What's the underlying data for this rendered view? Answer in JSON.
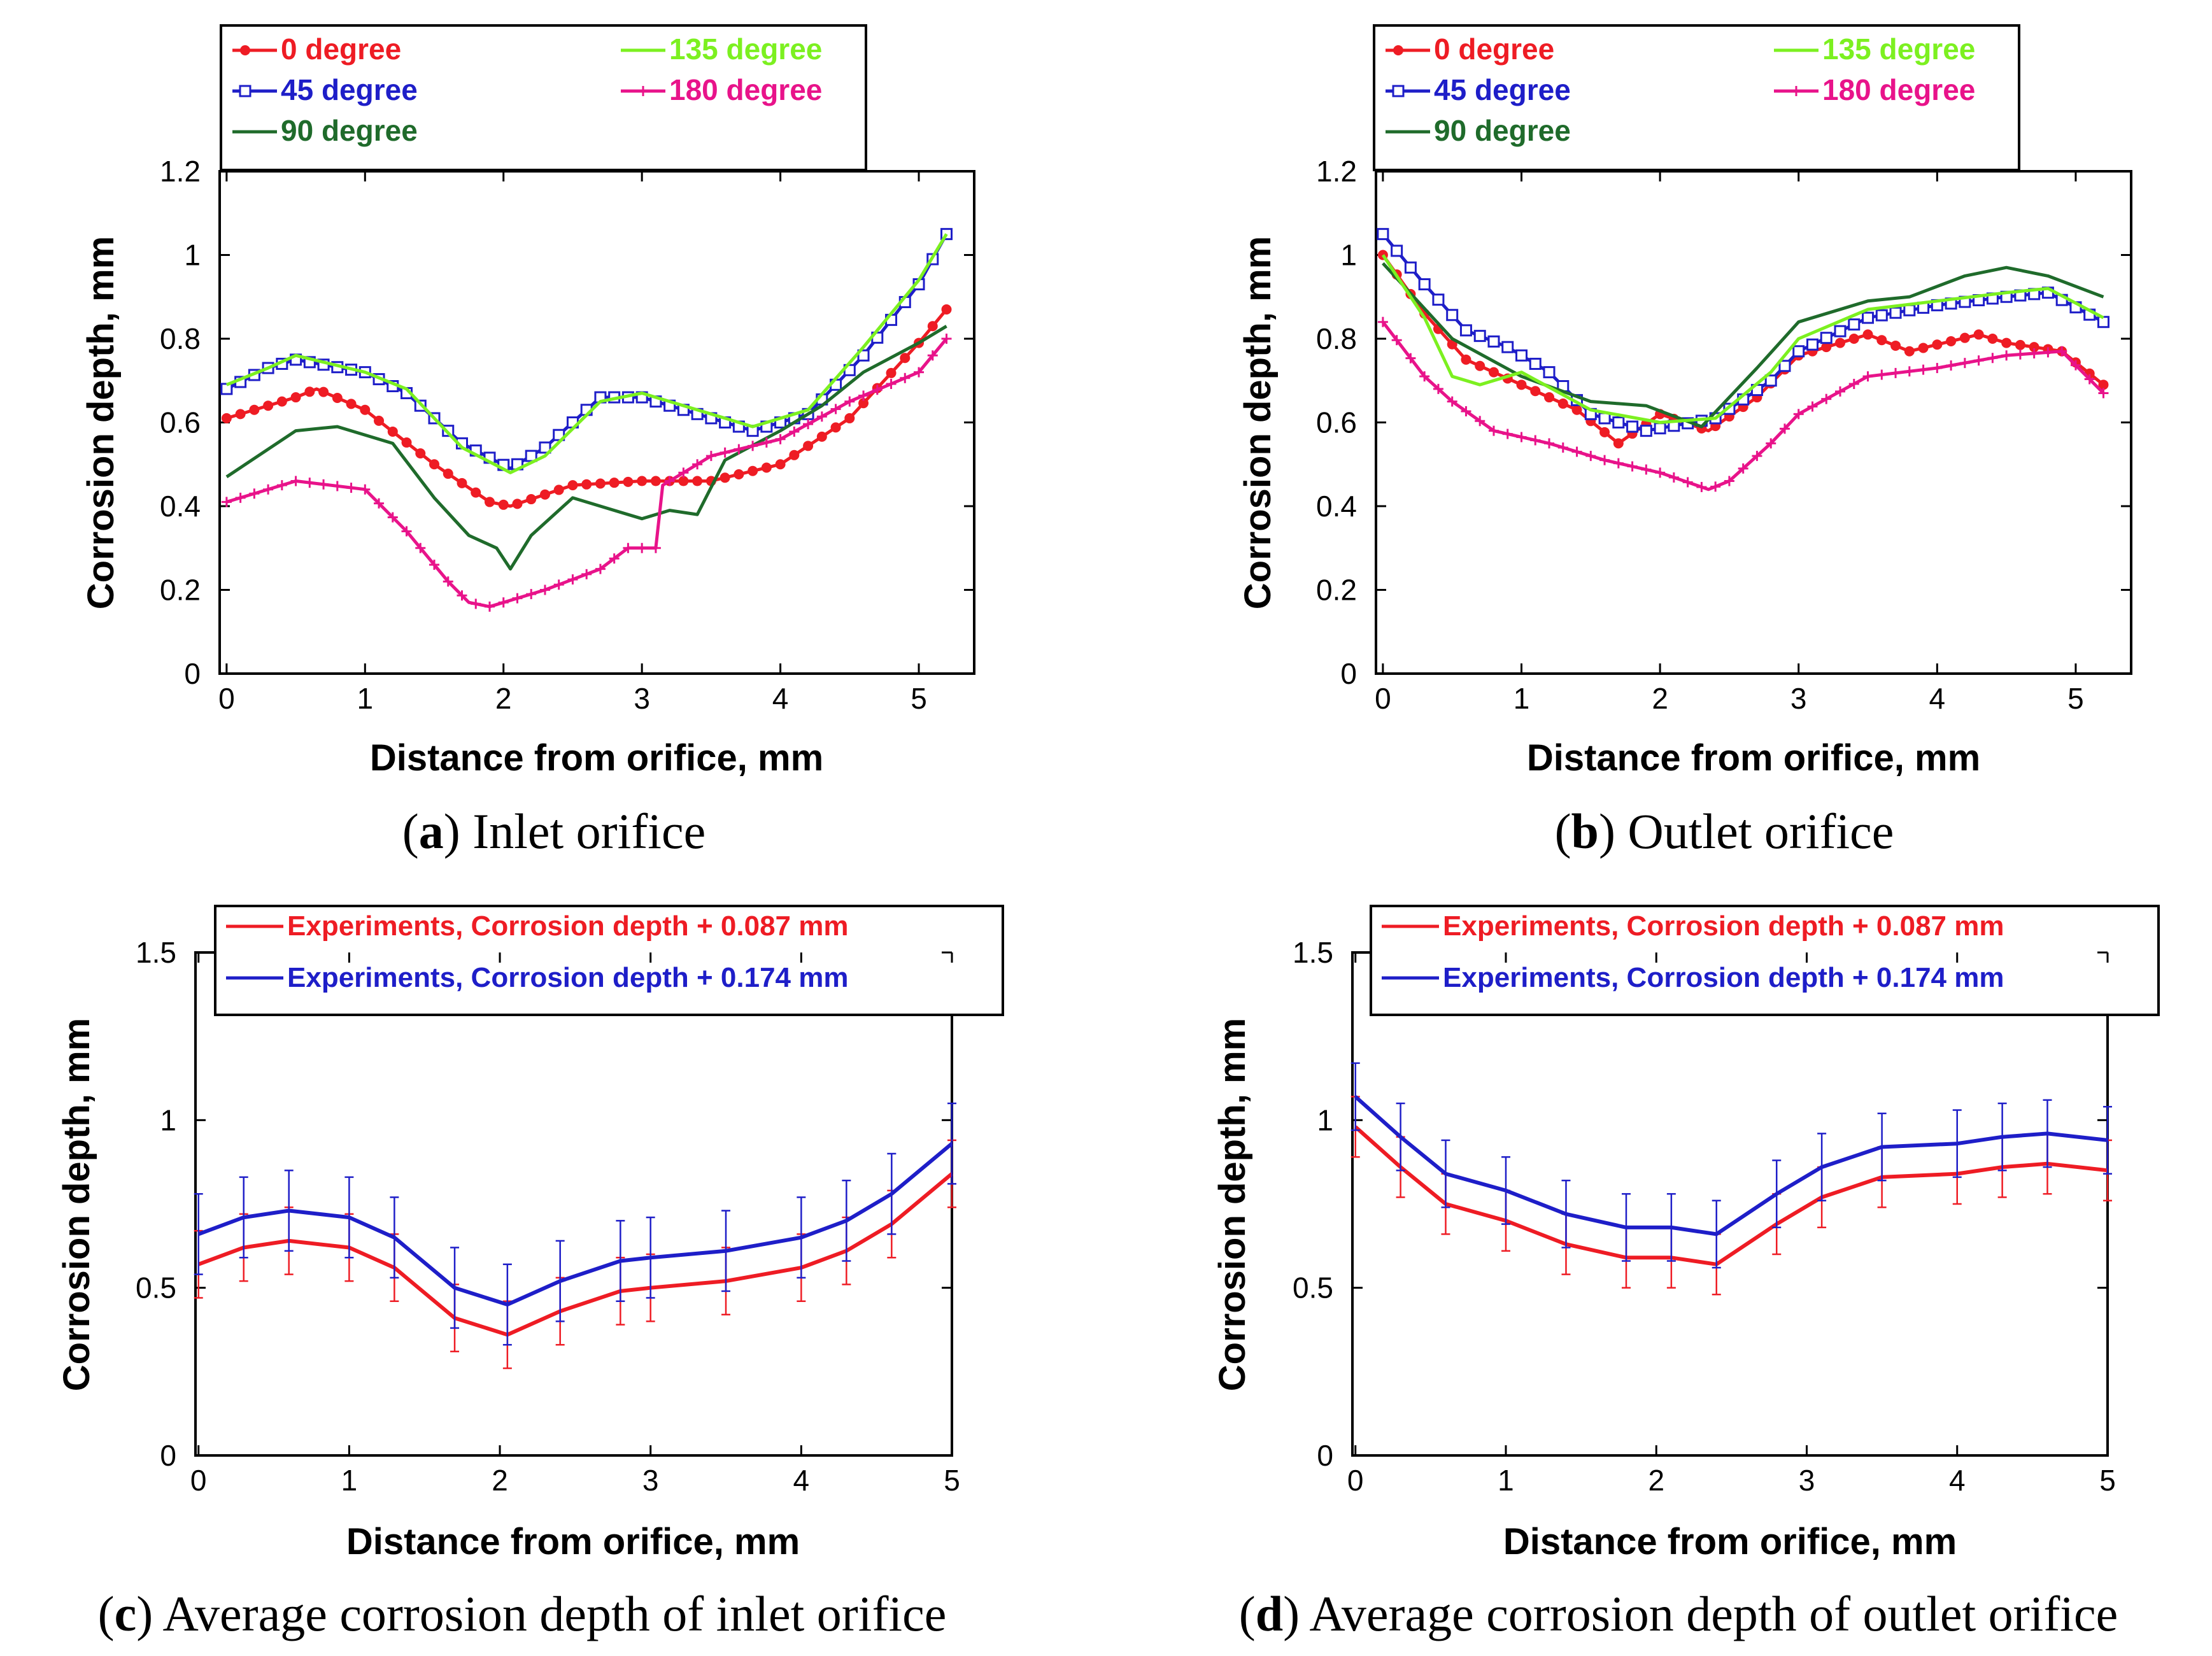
{
  "colors": {
    "red": "#ee1c24",
    "blue": "#1e1ec8",
    "dark_green": "#1f6b2b",
    "light_green": "#7cf020",
    "pink": "#e8138a",
    "black": "#000000"
  },
  "chart_data": [
    {
      "id": "a",
      "type": "line",
      "caption_letter": "a",
      "caption_text": "Inlet orifice",
      "xlabel": "Distance from orifice, mm",
      "ylabel": "Corrosion depth, mm",
      "xlim": [
        -0.05,
        5.4
      ],
      "ylim": [
        0,
        1.2
      ],
      "xticks": [
        {
          "v": 0,
          "label": "0"
        },
        {
          "v": 1,
          "label": "1"
        },
        {
          "v": 2,
          "label": "2"
        },
        {
          "v": 3,
          "label": "3"
        },
        {
          "v": 4,
          "label": "4"
        },
        {
          "v": 5,
          "label": "5"
        }
      ],
      "yticks": [
        {
          "v": 0,
          "label": "0"
        },
        {
          "v": 0.2,
          "label": "0.2"
        },
        {
          "v": 0.4,
          "label": "0.4"
        },
        {
          "v": 0.6,
          "label": "0.6"
        },
        {
          "v": 0.8,
          "label": "0.8"
        },
        {
          "v": 1,
          "label": "1"
        },
        {
          "v": 1.2,
          "label": "1.2"
        }
      ],
      "legend_position": "top",
      "series": [
        {
          "name": "0 degree",
          "color": "red",
          "marker": "dot",
          "x": [
            0,
            0.5,
            0.65,
            1,
            1.5,
            1.9,
            2.05,
            2.5,
            3,
            3.5,
            4,
            4.5,
            5,
            5.2
          ],
          "y": [
            0.61,
            0.66,
            0.68,
            0.63,
            0.5,
            0.41,
            0.4,
            0.45,
            0.46,
            0.46,
            0.5,
            0.61,
            0.79,
            0.87
          ]
        },
        {
          "name": "45 degree",
          "color": "blue",
          "marker": "square",
          "x": [
            0,
            0.3,
            0.5,
            1,
            1.3,
            1.7,
            2.05,
            2.3,
            2.7,
            3.0,
            3.5,
            3.8,
            4.2,
            4.6,
            5.0,
            5.2
          ],
          "y": [
            0.68,
            0.73,
            0.75,
            0.72,
            0.67,
            0.55,
            0.49,
            0.54,
            0.66,
            0.66,
            0.61,
            0.58,
            0.62,
            0.76,
            0.93,
            1.05
          ]
        },
        {
          "name": "90 degree",
          "color": "dark_green",
          "marker": "none",
          "x": [
            0,
            0.5,
            0.8,
            1.2,
            1.5,
            1.75,
            1.95,
            2.05,
            2.2,
            2.5,
            2.8,
            3.0,
            3.2,
            3.4,
            3.6,
            4.0,
            4.3,
            4.6,
            5.0,
            5.2
          ],
          "y": [
            0.47,
            0.58,
            0.59,
            0.55,
            0.42,
            0.33,
            0.3,
            0.25,
            0.33,
            0.42,
            0.39,
            0.37,
            0.39,
            0.38,
            0.51,
            0.58,
            0.64,
            0.72,
            0.79,
            0.83
          ]
        },
        {
          "name": "135 degree",
          "color": "light_green",
          "marker": "none",
          "x": [
            0,
            0.3,
            0.5,
            1,
            1.3,
            1.7,
            2.05,
            2.3,
            2.7,
            3.0,
            3.5,
            3.8,
            4.2,
            4.6,
            5.0,
            5.2
          ],
          "y": [
            0.69,
            0.73,
            0.76,
            0.72,
            0.68,
            0.54,
            0.48,
            0.52,
            0.65,
            0.67,
            0.62,
            0.59,
            0.63,
            0.78,
            0.94,
            1.05
          ]
        },
        {
          "name": "180 degree",
          "color": "pink",
          "marker": "plus",
          "x": [
            0,
            0.5,
            1.0,
            1.3,
            1.6,
            1.75,
            1.9,
            2.3,
            2.7,
            2.9,
            3.1,
            3.15,
            3.5,
            4.0,
            4.5,
            5.0,
            5.2
          ],
          "y": [
            0.41,
            0.46,
            0.44,
            0.34,
            0.22,
            0.17,
            0.16,
            0.2,
            0.25,
            0.3,
            0.3,
            0.45,
            0.52,
            0.56,
            0.65,
            0.72,
            0.8
          ]
        }
      ]
    },
    {
      "id": "b",
      "type": "line",
      "caption_letter": "b",
      "caption_text": "Outlet orifice",
      "xlabel": "Distance from orifice, mm",
      "ylabel": "Corrosion depth, mm",
      "xlim": [
        -0.05,
        5.4
      ],
      "ylim": [
        0,
        1.2
      ],
      "xticks": [
        {
          "v": 0,
          "label": "0"
        },
        {
          "v": 1,
          "label": "1"
        },
        {
          "v": 2,
          "label": "2"
        },
        {
          "v": 3,
          "label": "3"
        },
        {
          "v": 4,
          "label": "4"
        },
        {
          "v": 5,
          "label": "5"
        }
      ],
      "yticks": [
        {
          "v": 0,
          "label": "0"
        },
        {
          "v": 0.2,
          "label": "0.2"
        },
        {
          "v": 0.4,
          "label": "0.4"
        },
        {
          "v": 0.6,
          "label": "0.6"
        },
        {
          "v": 0.8,
          "label": "0.8"
        },
        {
          "v": 1,
          "label": "1"
        },
        {
          "v": 1.2,
          "label": "1.2"
        }
      ],
      "legend_position": "top",
      "series": [
        {
          "name": "0 degree",
          "color": "red",
          "marker": "dot",
          "x": [
            0,
            0.3,
            0.6,
            1.0,
            1.4,
            1.7,
            2.0,
            2.35,
            2.7,
            3.0,
            3.5,
            3.8,
            4.3,
            4.5,
            4.9,
            5.2
          ],
          "y": [
            1.0,
            0.86,
            0.75,
            0.69,
            0.63,
            0.55,
            0.62,
            0.58,
            0.66,
            0.76,
            0.81,
            0.77,
            0.81,
            0.79,
            0.77,
            0.69
          ]
        },
        {
          "name": "45 degree",
          "color": "blue",
          "marker": "square",
          "x": [
            0,
            0.3,
            0.6,
            0.9,
            1.2,
            1.5,
            1.9,
            2.4,
            2.8,
            3.0,
            3.5,
            4.0,
            4.5,
            4.8,
            5.2
          ],
          "y": [
            1.05,
            0.93,
            0.82,
            0.78,
            0.72,
            0.62,
            0.58,
            0.61,
            0.7,
            0.77,
            0.85,
            0.88,
            0.9,
            0.91,
            0.84
          ]
        },
        {
          "name": "90 degree",
          "color": "dark_green",
          "marker": "none",
          "x": [
            0,
            0.5,
            1.0,
            1.5,
            1.9,
            2.3,
            2.7,
            3.0,
            3.5,
            3.8,
            4.2,
            4.5,
            4.8,
            5.2
          ],
          "y": [
            0.98,
            0.8,
            0.71,
            0.65,
            0.64,
            0.59,
            0.73,
            0.84,
            0.89,
            0.9,
            0.95,
            0.97,
            0.95,
            0.9
          ]
        },
        {
          "name": "135 degree",
          "color": "light_green",
          "marker": "none",
          "x": [
            0,
            0.3,
            0.5,
            0.7,
            1.0,
            1.5,
            2.0,
            2.4,
            2.8,
            3.0,
            3.5,
            4.0,
            4.5,
            4.8,
            5.2
          ],
          "y": [
            1.0,
            0.85,
            0.71,
            0.69,
            0.72,
            0.63,
            0.6,
            0.61,
            0.72,
            0.8,
            0.87,
            0.89,
            0.91,
            0.92,
            0.85
          ]
        },
        {
          "name": "180 degree",
          "color": "pink",
          "marker": "plus",
          "x": [
            0,
            0.3,
            0.5,
            0.8,
            1.2,
            1.6,
            2.0,
            2.35,
            2.5,
            2.8,
            3.0,
            3.5,
            4.0,
            4.5,
            4.9,
            5.2
          ],
          "y": [
            0.84,
            0.71,
            0.65,
            0.58,
            0.55,
            0.51,
            0.48,
            0.44,
            0.46,
            0.55,
            0.62,
            0.71,
            0.73,
            0.76,
            0.77,
            0.67
          ]
        }
      ]
    },
    {
      "id": "c",
      "type": "line",
      "caption_letter": "c",
      "caption_text": "Average corrosion depth of inlet orifice",
      "xlabel": "Distance from orifice, mm",
      "ylabel": "Corrosion depth, mm",
      "xlim": [
        -0.02,
        5.0
      ],
      "ylim": [
        0,
        1.5
      ],
      "xticks": [
        {
          "v": 0,
          "label": "0"
        },
        {
          "v": 1,
          "label": "1"
        },
        {
          "v": 2,
          "label": "2"
        },
        {
          "v": 3,
          "label": "3"
        },
        {
          "v": 4,
          "label": "4"
        },
        {
          "v": 5,
          "label": "5"
        }
      ],
      "yticks": [
        {
          "v": 0,
          "label": "0"
        },
        {
          "v": 0.5,
          "label": "0.5"
        },
        {
          "v": 1,
          "label": "1"
        },
        {
          "v": 1.5,
          "label": "1.5"
        }
      ],
      "legend_position": "top",
      "error_bars": true,
      "series": [
        {
          "name": "Experiments, Corrosion depth + 0.087 mm",
          "color": "red",
          "x": [
            0,
            0.3,
            0.6,
            1.0,
            1.3,
            1.7,
            2.05,
            2.4,
            2.8,
            3.0,
            3.5,
            4.0,
            4.3,
            4.6,
            5.0
          ],
          "y": [
            0.57,
            0.62,
            0.64,
            0.62,
            0.56,
            0.41,
            0.36,
            0.43,
            0.49,
            0.5,
            0.52,
            0.56,
            0.61,
            0.69,
            0.84
          ],
          "err": 0.1
        },
        {
          "name": "Experiments, Corrosion depth + 0.174 mm",
          "color": "blue",
          "x": [
            0,
            0.3,
            0.6,
            1.0,
            1.3,
            1.7,
            2.05,
            2.4,
            2.8,
            3.0,
            3.5,
            4.0,
            4.3,
            4.6,
            5.0
          ],
          "y": [
            0.66,
            0.71,
            0.73,
            0.71,
            0.65,
            0.5,
            0.45,
            0.52,
            0.58,
            0.59,
            0.61,
            0.65,
            0.7,
            0.78,
            0.93
          ],
          "err": 0.12
        }
      ]
    },
    {
      "id": "d",
      "type": "line",
      "caption_letter": "d",
      "caption_text": "Average corrosion depth of outlet orifice",
      "xlabel": "Distance from orifice, mm",
      "ylabel": "Corrosion depth, mm",
      "xlim": [
        -0.02,
        5.0
      ],
      "ylim": [
        0,
        1.5
      ],
      "xticks": [
        {
          "v": 0,
          "label": "0"
        },
        {
          "v": 1,
          "label": "1"
        },
        {
          "v": 2,
          "label": "2"
        },
        {
          "v": 3,
          "label": "3"
        },
        {
          "v": 4,
          "label": "4"
        },
        {
          "v": 5,
          "label": "5"
        }
      ],
      "yticks": [
        {
          "v": 0,
          "label": "0"
        },
        {
          "v": 0.5,
          "label": "0.5"
        },
        {
          "v": 1,
          "label": "1"
        },
        {
          "v": 1.5,
          "label": "1.5"
        }
      ],
      "legend_position": "top",
      "error_bars": true,
      "series": [
        {
          "name": "Experiments, Corrosion depth + 0.087 mm",
          "color": "red",
          "x": [
            0,
            0.3,
            0.6,
            1.0,
            1.4,
            1.8,
            2.1,
            2.4,
            2.8,
            3.1,
            3.5,
            4.0,
            4.3,
            4.6,
            5.0
          ],
          "y": [
            0.98,
            0.86,
            0.75,
            0.7,
            0.63,
            0.59,
            0.59,
            0.57,
            0.69,
            0.77,
            0.83,
            0.84,
            0.86,
            0.87,
            0.85
          ],
          "err": 0.09
        },
        {
          "name": "Experiments, Corrosion depth + 0.174 mm",
          "color": "blue",
          "x": [
            0,
            0.3,
            0.6,
            1.0,
            1.4,
            1.8,
            2.1,
            2.4,
            2.8,
            3.1,
            3.5,
            4.0,
            4.3,
            4.6,
            5.0
          ],
          "y": [
            1.07,
            0.95,
            0.84,
            0.79,
            0.72,
            0.68,
            0.68,
            0.66,
            0.78,
            0.86,
            0.92,
            0.93,
            0.95,
            0.96,
            0.94
          ],
          "err": 0.1
        }
      ]
    }
  ]
}
